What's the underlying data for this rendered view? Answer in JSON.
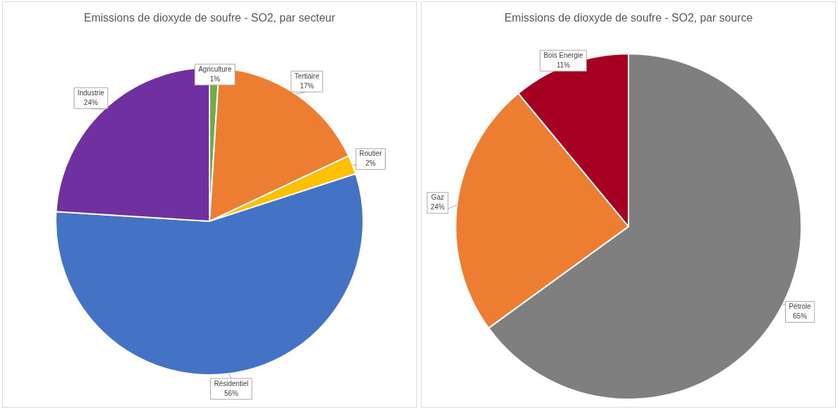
{
  "chart_data": [
    {
      "type": "pie",
      "title": "Emissions de dioxyde de soufre - SO2, par secteur",
      "categories": [
        "Agriculture",
        "Tertiaire",
        "Routier",
        "Résidentiel",
        "Industrie"
      ],
      "values": [
        1,
        17,
        2,
        56,
        24
      ],
      "value_labels": [
        "1%",
        "17%",
        "2%",
        "56%",
        "24%"
      ],
      "colors": [
        "#70ad47",
        "#ed7d31",
        "#ffc000",
        "#4472c4",
        "#7030a0"
      ],
      "legend": false
    },
    {
      "type": "pie",
      "title": "Emissions de dioxyde de soufre - SO2, par source",
      "categories": [
        "Pétrole",
        "Gaz",
        "Bois Energie"
      ],
      "values": [
        65,
        24,
        11
      ],
      "value_labels": [
        "65%",
        "24%",
        "11%"
      ],
      "colors": [
        "#7f7f7f",
        "#ed7d31",
        "#a50021"
      ],
      "legend": false
    }
  ]
}
